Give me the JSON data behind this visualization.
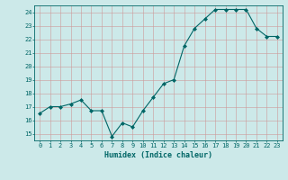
{
  "x": [
    0,
    1,
    2,
    3,
    4,
    5,
    6,
    7,
    8,
    9,
    10,
    11,
    12,
    13,
    14,
    15,
    16,
    17,
    18,
    19,
    20,
    21,
    22,
    23
  ],
  "y": [
    16.5,
    17.0,
    17.0,
    17.2,
    17.5,
    16.7,
    16.7,
    14.8,
    15.8,
    15.5,
    16.7,
    17.7,
    18.7,
    19.0,
    21.5,
    22.8,
    23.5,
    24.2,
    24.2,
    24.2,
    24.2,
    22.8,
    22.2,
    22.2
  ],
  "xlabel": "Humidex (Indice chaleur)",
  "ylim": [
    14.5,
    24.5
  ],
  "yticks": [
    15,
    16,
    17,
    18,
    19,
    20,
    21,
    22,
    23,
    24
  ],
  "xticks": [
    0,
    1,
    2,
    3,
    4,
    5,
    6,
    7,
    8,
    9,
    10,
    11,
    12,
    13,
    14,
    15,
    16,
    17,
    18,
    19,
    20,
    21,
    22,
    23
  ],
  "line_color": "#006666",
  "marker": "D",
  "marker_size": 2,
  "bg_color": "#cce9e9",
  "grid_color": "#cc9999",
  "axis_color": "#006666",
  "font_color": "#006666",
  "font_family": "monospace",
  "tick_fontsize": 5,
  "xlabel_fontsize": 6
}
